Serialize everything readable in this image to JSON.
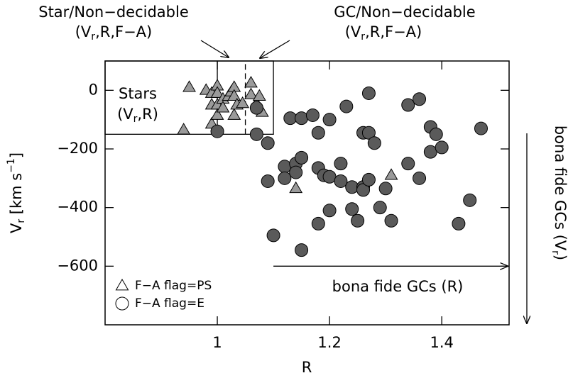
{
  "chart_data": {
    "type": "scatter",
    "xlabel": "R",
    "ylabel": {
      "main": "V",
      "sub": "r",
      "rest": " [km s",
      "sup": "−1",
      "end": "]"
    },
    "xlim": [
      0.8,
      1.52
    ],
    "ylim": [
      -800,
      100
    ],
    "xticks": [
      1,
      1.2,
      1.4
    ],
    "yticks": [
      {
        "value": 0,
        "label": "0"
      },
      {
        "value": -200,
        "label": "−200"
      },
      {
        "value": -400,
        "label": "−400"
      },
      {
        "value": -600,
        "label": "−600"
      }
    ],
    "annotations": {
      "star_nd": {
        "line1": "Star/Non−decidable",
        "line2": {
          "pre": "(V",
          "sub": "r",
          "post": ",R,F−A)"
        }
      },
      "gc_nd": {
        "line1": "GC/Non−decidable",
        "line2": {
          "pre": "(V",
          "sub": "r",
          "post": ",R,F−A)"
        }
      },
      "stars": {
        "line1": "Stars",
        "line2": {
          "pre": "(V",
          "sub": "r",
          "post": ",R)"
        }
      },
      "gc_r": "bona fide GCs (R)",
      "gc_v": {
        "pre": "bona fide GCs (V",
        "sub": "r",
        "post": ")"
      }
    },
    "boxes": [
      {
        "x": [
          0.8,
          1.1
        ],
        "y": [
          -150,
          100
        ]
      }
    ],
    "vlines": [
      {
        "x": 1.0,
        "y": [
          -150,
          100
        ],
        "dashed": false
      },
      {
        "x": 1.05,
        "y": [
          -150,
          100
        ],
        "dashed": true
      }
    ],
    "arrow_r": {
      "x": [
        1.1,
        1.52
      ],
      "y": -600
    },
    "series": [
      {
        "name": "F−A flag=PS",
        "marker": "triangle",
        "color": "#9a9a9a",
        "x": [
          0.94,
          0.95,
          0.98,
          0.99,
          0.99,
          0.99,
          1.0,
          1.0,
          1.0,
          1.0,
          1.01,
          1.01,
          1.02,
          1.025,
          1.03,
          1.03,
          1.03,
          1.035,
          1.045,
          1.06,
          1.06,
          1.07,
          1.075,
          1.08,
          1.14,
          1.31
        ],
        "values": [
          -135,
          10,
          0,
          -10,
          -115,
          -50,
          15,
          -50,
          -10,
          -85,
          -30,
          -60,
          -20,
          -5,
          10,
          -20,
          -85,
          -50,
          -45,
          25,
          -15,
          -45,
          -20,
          -75,
          -335,
          -290
        ]
      },
      {
        "name": "F−A flag=E",
        "marker": "circle",
        "color": "#5a5a5a",
        "x": [
          1.0,
          1.07,
          1.07,
          1.09,
          1.09,
          1.1,
          1.12,
          1.12,
          1.13,
          1.14,
          1.14,
          1.15,
          1.15,
          1.15,
          1.17,
          1.18,
          1.18,
          1.18,
          1.19,
          1.2,
          1.2,
          1.2,
          1.22,
          1.22,
          1.23,
          1.24,
          1.24,
          1.25,
          1.26,
          1.26,
          1.26,
          1.27,
          1.27,
          1.27,
          1.28,
          1.29,
          1.3,
          1.31,
          1.34,
          1.34,
          1.36,
          1.36,
          1.38,
          1.38,
          1.39,
          1.4,
          1.43,
          1.45,
          1.47
        ],
        "values": [
          -140,
          -60,
          -150,
          -180,
          -310,
          -495,
          -260,
          -300,
          -95,
          -250,
          -280,
          -95,
          -230,
          -545,
          -85,
          -145,
          -265,
          -455,
          -290,
          -100,
          -295,
          -410,
          -250,
          -310,
          -55,
          -330,
          -405,
          -445,
          -145,
          -330,
          -340,
          -10,
          -145,
          -305,
          -180,
          -400,
          -335,
          -445,
          -50,
          -250,
          -30,
          -300,
          -125,
          -210,
          -150,
          -195,
          -455,
          -375,
          -130
        ]
      }
    ]
  }
}
